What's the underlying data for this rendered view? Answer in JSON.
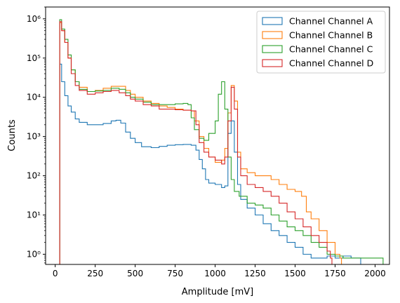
{
  "chart_data": {
    "type": "histogram",
    "title": "",
    "xlabel": "Amplitude [mV]",
    "ylabel": "Counts",
    "xlim": [
      -60,
      2090
    ],
    "ylim": [
      0.55,
      2000000
    ],
    "yscale": "log",
    "grid": false,
    "legend_position": "top-right",
    "x_ticks": [
      0,
      250,
      500,
      750,
      1000,
      1250,
      1500,
      1750,
      2000
    ],
    "x_tick_labels": [
      "0",
      "250",
      "500",
      "750",
      "1000",
      "1250",
      "1500",
      "1750",
      "2000"
    ],
    "y_ticks": [
      1,
      10,
      100,
      1000,
      10000,
      100000,
      1000000
    ],
    "y_tick_labels": [
      "10⁰",
      "10¹",
      "10²",
      "10³",
      "10⁴",
      "10⁵",
      "10⁶"
    ],
    "series": [
      {
        "name": "Channel Channel A",
        "color": "#1f77b4",
        "points": [
          [
            25,
            0
          ],
          [
            28,
            70000
          ],
          [
            40,
            25000
          ],
          [
            60,
            11000
          ],
          [
            80,
            6000
          ],
          [
            100,
            4200
          ],
          [
            125,
            2800
          ],
          [
            150,
            2300
          ],
          [
            200,
            2000
          ],
          [
            250,
            2000
          ],
          [
            300,
            2150
          ],
          [
            350,
            2500
          ],
          [
            380,
            2600
          ],
          [
            410,
            2200
          ],
          [
            440,
            1300
          ],
          [
            470,
            900
          ],
          [
            500,
            700
          ],
          [
            540,
            550
          ],
          [
            600,
            520
          ],
          [
            650,
            560
          ],
          [
            700,
            600
          ],
          [
            750,
            620
          ],
          [
            800,
            630
          ],
          [
            850,
            600
          ],
          [
            880,
            450
          ],
          [
            900,
            260
          ],
          [
            920,
            150
          ],
          [
            940,
            80
          ],
          [
            960,
            65
          ],
          [
            1000,
            60
          ],
          [
            1040,
            50
          ],
          [
            1060,
            55
          ],
          [
            1080,
            1200
          ],
          [
            1100,
            2500
          ],
          [
            1120,
            400
          ],
          [
            1140,
            60
          ],
          [
            1160,
            25
          ],
          [
            1200,
            15
          ],
          [
            1250,
            10
          ],
          [
            1300,
            6
          ],
          [
            1350,
            4
          ],
          [
            1400,
            3
          ],
          [
            1450,
            2
          ],
          [
            1500,
            1.5
          ],
          [
            1550,
            1
          ],
          [
            1600,
            0.8
          ],
          [
            1650,
            0.8
          ],
          [
            1700,
            0.9
          ],
          [
            1750,
            0.8
          ],
          [
            1800,
            0.9
          ],
          [
            1850,
            0.8
          ],
          [
            1900,
            0.8
          ]
        ]
      },
      {
        "name": "Channel Channel B",
        "color": "#ff7f0e",
        "points": [
          [
            25,
            0
          ],
          [
            28,
            800000
          ],
          [
            40,
            500000
          ],
          [
            60,
            250000
          ],
          [
            80,
            100000
          ],
          [
            100,
            50000
          ],
          [
            125,
            25000
          ],
          [
            150,
            18000
          ],
          [
            200,
            14000
          ],
          [
            250,
            15000
          ],
          [
            300,
            17000
          ],
          [
            350,
            19000
          ],
          [
            400,
            19000
          ],
          [
            440,
            15000
          ],
          [
            470,
            12000
          ],
          [
            500,
            10000
          ],
          [
            550,
            8000
          ],
          [
            600,
            7000
          ],
          [
            650,
            6000
          ],
          [
            700,
            5500
          ],
          [
            750,
            5000
          ],
          [
            800,
            4700
          ],
          [
            850,
            4500
          ],
          [
            870,
            2500
          ],
          [
            900,
            1000
          ],
          [
            930,
            500
          ],
          [
            960,
            300
          ],
          [
            1000,
            220
          ],
          [
            1040,
            250
          ],
          [
            1060,
            500
          ],
          [
            1080,
            4000
          ],
          [
            1100,
            20000
          ],
          [
            1120,
            8000
          ],
          [
            1140,
            400
          ],
          [
            1160,
            150
          ],
          [
            1200,
            120
          ],
          [
            1250,
            100
          ],
          [
            1300,
            100
          ],
          [
            1350,
            80
          ],
          [
            1400,
            60
          ],
          [
            1450,
            45
          ],
          [
            1500,
            40
          ],
          [
            1540,
            30
          ],
          [
            1570,
            12
          ],
          [
            1600,
            8
          ],
          [
            1650,
            4
          ],
          [
            1700,
            2
          ],
          [
            1750,
            1
          ],
          [
            1780,
            0.8
          ]
        ]
      },
      {
        "name": "Channel Channel C",
        "color": "#2ca02c",
        "points": [
          [
            25,
            0
          ],
          [
            28,
            950000
          ],
          [
            40,
            550000
          ],
          [
            60,
            300000
          ],
          [
            80,
            120000
          ],
          [
            100,
            50000
          ],
          [
            125,
            25000
          ],
          [
            150,
            16000
          ],
          [
            200,
            14000
          ],
          [
            250,
            14500
          ],
          [
            300,
            15000
          ],
          [
            350,
            17000
          ],
          [
            400,
            16000
          ],
          [
            440,
            13000
          ],
          [
            470,
            10000
          ],
          [
            500,
            9000
          ],
          [
            550,
            7500
          ],
          [
            600,
            6500
          ],
          [
            650,
            6500
          ],
          [
            700,
            6500
          ],
          [
            750,
            6800
          ],
          [
            800,
            7000
          ],
          [
            830,
            6500
          ],
          [
            850,
            3000
          ],
          [
            870,
            1500
          ],
          [
            900,
            900
          ],
          [
            930,
            800
          ],
          [
            960,
            1200
          ],
          [
            1000,
            2500
          ],
          [
            1020,
            12000
          ],
          [
            1040,
            25000
          ],
          [
            1060,
            5000
          ],
          [
            1080,
            300
          ],
          [
            1100,
            80
          ],
          [
            1120,
            40
          ],
          [
            1150,
            30
          ],
          [
            1200,
            20
          ],
          [
            1250,
            18
          ],
          [
            1300,
            15
          ],
          [
            1350,
            10
          ],
          [
            1400,
            7
          ],
          [
            1450,
            5
          ],
          [
            1500,
            4
          ],
          [
            1550,
            3
          ],
          [
            1600,
            2
          ],
          [
            1650,
            1.5
          ],
          [
            1700,
            1
          ],
          [
            1750,
            0.9
          ],
          [
            1800,
            0.8
          ],
          [
            1900,
            0.8
          ],
          [
            1950,
            0.8
          ],
          [
            2000,
            0.8
          ],
          [
            2040,
            0.8
          ]
        ]
      },
      {
        "name": "Channel Channel D",
        "color": "#d62728",
        "points": [
          [
            25,
            0
          ],
          [
            28,
            850000
          ],
          [
            40,
            500000
          ],
          [
            60,
            250000
          ],
          [
            80,
            100000
          ],
          [
            100,
            40000
          ],
          [
            125,
            20000
          ],
          [
            150,
            15000
          ],
          [
            200,
            12000
          ],
          [
            250,
            13000
          ],
          [
            300,
            14000
          ],
          [
            350,
            15000
          ],
          [
            400,
            13000
          ],
          [
            440,
            11000
          ],
          [
            470,
            9000
          ],
          [
            500,
            8000
          ],
          [
            550,
            6500
          ],
          [
            600,
            6000
          ],
          [
            650,
            5000
          ],
          [
            700,
            5000
          ],
          [
            750,
            4800
          ],
          [
            800,
            4700
          ],
          [
            850,
            4500
          ],
          [
            880,
            2000
          ],
          [
            900,
            700
          ],
          [
            930,
            400
          ],
          [
            960,
            300
          ],
          [
            1000,
            250
          ],
          [
            1040,
            200
          ],
          [
            1060,
            300
          ],
          [
            1080,
            2500
          ],
          [
            1100,
            18000
          ],
          [
            1120,
            5000
          ],
          [
            1140,
            300
          ],
          [
            1160,
            100
          ],
          [
            1200,
            60
          ],
          [
            1250,
            50
          ],
          [
            1300,
            40
          ],
          [
            1350,
            30
          ],
          [
            1400,
            20
          ],
          [
            1450,
            12
          ],
          [
            1500,
            8
          ],
          [
            1550,
            5
          ],
          [
            1600,
            3
          ],
          [
            1650,
            2
          ],
          [
            1700,
            1.2
          ],
          [
            1720,
            0.8
          ]
        ]
      }
    ]
  }
}
